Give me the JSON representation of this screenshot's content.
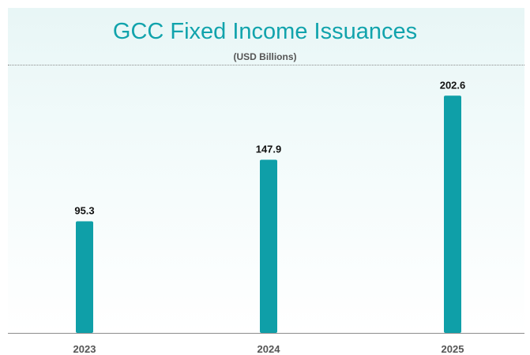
{
  "chart_data": {
    "type": "bar",
    "title": "GCC Fixed Income Issuances",
    "subtitle": "(USD Billions)",
    "categories": [
      "2023",
      "2024",
      "2025"
    ],
    "values": [
      95.3,
      147.9,
      202.6
    ],
    "data_labels": [
      "95.3",
      "147.9",
      "202.6"
    ],
    "xlabel": "",
    "ylabel": "",
    "ylim": [
      0,
      225
    ],
    "grid": false,
    "legend": "none",
    "bar_color": "#0f9fa8",
    "title_color": "#11a3ac"
  }
}
